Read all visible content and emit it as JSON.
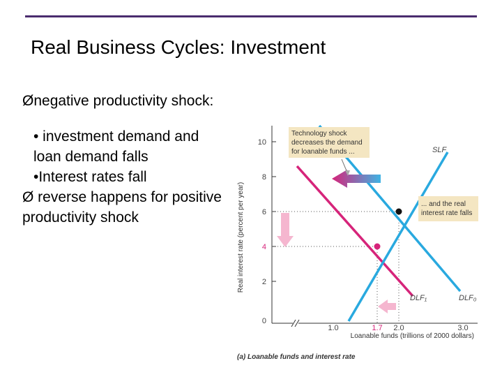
{
  "slide": {
    "title": "Real Business Cycles: Investment",
    "bullets": [
      "Ønegative productivity shock:",
      "• investment demand and loan demand falls",
      "•Interest rates fall",
      "Ø reverse happens for positive productivity shock"
    ]
  },
  "diagram": {
    "ylabel": "Real interest rate (percent per year)",
    "xlabel": "Loanable funds (trillions of 2000 dollars)",
    "caption": "(a) Loanable funds and interest rate",
    "y_ticks": [
      "0",
      "2",
      "4",
      "6",
      "8",
      "10"
    ],
    "x_ticks": [
      "1.0",
      "1.7",
      "2.0",
      "3.0"
    ],
    "curves": {
      "slf": "SLF",
      "dlf1": "DLF₁",
      "dlf0": "DLF₀"
    },
    "callouts": {
      "shock": [
        "Technology shock",
        "decreases the demand",
        "for loanable funds ..."
      ],
      "rate": [
        "... and the real",
        "interest rate falls"
      ]
    },
    "colors": {
      "slf": "#29a9df",
      "dlf0": "#29a9df",
      "dlf1": "#d6247a",
      "highlight": "#d6247a",
      "callout_bg": "#f4e6c2",
      "arrow_pink": "#f5b6cf"
    }
  }
}
